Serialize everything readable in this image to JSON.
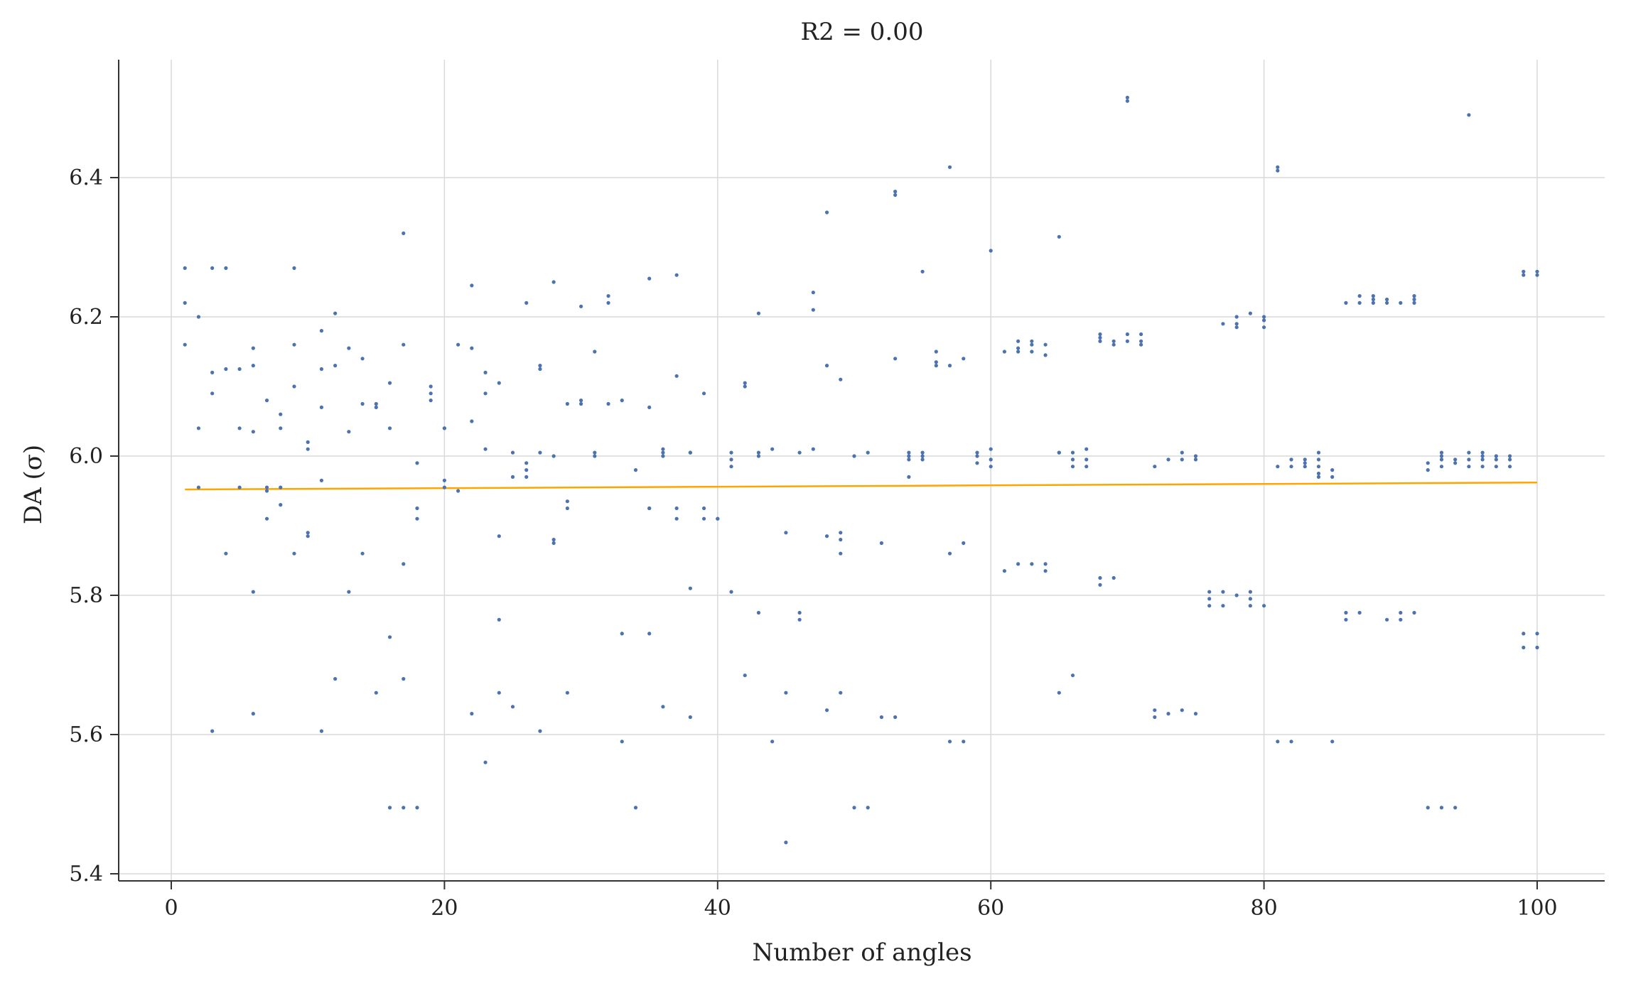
{
  "chart_data": {
    "type": "scatter",
    "title": "R2 = 0.00",
    "xlabel": "Number of angles",
    "ylabel": "DA (σ)",
    "xlim": [
      -4,
      105
    ],
    "ylim": [
      5.39,
      6.57
    ],
    "xticks": [
      0,
      20,
      40,
      60,
      80,
      100
    ],
    "yticks": [
      5.4,
      5.6,
      5.8,
      6.0,
      6.2,
      6.4
    ],
    "xtick_labels": [
      "0",
      "20",
      "40",
      "60",
      "80",
      "100"
    ],
    "ytick_labels": [
      "5.4",
      "5.6",
      "5.8",
      "6.0",
      "6.2",
      "6.4"
    ],
    "grid": true,
    "colors": {
      "points": "#4c72b0",
      "fit": "#ffa500",
      "grid": "#d9d9d9",
      "axis": "#333333"
    },
    "fit_line": {
      "x": [
        1,
        100
      ],
      "y": [
        5.952,
        5.962
      ]
    },
    "points": [
      [
        1,
        6.27
      ],
      [
        1,
        6.22
      ],
      [
        1,
        6.16
      ],
      [
        2,
        6.2
      ],
      [
        2,
        6.04
      ],
      [
        2,
        5.955
      ],
      [
        3,
        6.27
      ],
      [
        3,
        6.12
      ],
      [
        3,
        6.09
      ],
      [
        3,
        5.605
      ],
      [
        4,
        6.27
      ],
      [
        4,
        6.125
      ],
      [
        4,
        5.86
      ],
      [
        5,
        6.125
      ],
      [
        5,
        6.04
      ],
      [
        5,
        5.955
      ],
      [
        6,
        6.155
      ],
      [
        6,
        6.13
      ],
      [
        6,
        6.035
      ],
      [
        6,
        5.805
      ],
      [
        6,
        5.63
      ],
      [
        7,
        6.08
      ],
      [
        7,
        5.955
      ],
      [
        7,
        5.95
      ],
      [
        7,
        5.91
      ],
      [
        8,
        6.06
      ],
      [
        8,
        6.04
      ],
      [
        8,
        5.955
      ],
      [
        8,
        5.93
      ],
      [
        9,
        6.27
      ],
      [
        9,
        6.16
      ],
      [
        9,
        6.1
      ],
      [
        9,
        5.86
      ],
      [
        10,
        6.02
      ],
      [
        10,
        6.01
      ],
      [
        10,
        5.89
      ],
      [
        10,
        5.885
      ],
      [
        11,
        6.18
      ],
      [
        11,
        6.125
      ],
      [
        11,
        6.07
      ],
      [
        11,
        5.965
      ],
      [
        11,
        5.605
      ],
      [
        12,
        6.205
      ],
      [
        12,
        6.13
      ],
      [
        12,
        5.68
      ],
      [
        13,
        6.155
      ],
      [
        13,
        6.035
      ],
      [
        13,
        5.805
      ],
      [
        14,
        6.14
      ],
      [
        14,
        6.075
      ],
      [
        14,
        5.86
      ],
      [
        15,
        6.075
      ],
      [
        15,
        6.07
      ],
      [
        15,
        5.66
      ],
      [
        16,
        6.105
      ],
      [
        16,
        6.04
      ],
      [
        16,
        5.74
      ],
      [
        16,
        5.495
      ],
      [
        17,
        6.32
      ],
      [
        17,
        6.16
      ],
      [
        17,
        5.845
      ],
      [
        17,
        5.68
      ],
      [
        17,
        5.495
      ],
      [
        18,
        5.99
      ],
      [
        18,
        5.925
      ],
      [
        18,
        5.91
      ],
      [
        18,
        5.495
      ],
      [
        19,
        6.1
      ],
      [
        19,
        6.09
      ],
      [
        19,
        6.08
      ],
      [
        20,
        6.04
      ],
      [
        20,
        6.04
      ],
      [
        20,
        5.965
      ],
      [
        20,
        5.955
      ],
      [
        21,
        6.16
      ],
      [
        21,
        5.95
      ],
      [
        22,
        6.245
      ],
      [
        22,
        6.155
      ],
      [
        22,
        6.05
      ],
      [
        22,
        5.63
      ],
      [
        23,
        6.12
      ],
      [
        23,
        6.09
      ],
      [
        23,
        6.01
      ],
      [
        23,
        5.56
      ],
      [
        24,
        6.105
      ],
      [
        24,
        5.885
      ],
      [
        24,
        5.765
      ],
      [
        24,
        5.66
      ],
      [
        25,
        6.005
      ],
      [
        25,
        5.97
      ],
      [
        25,
        5.64
      ],
      [
        26,
        6.22
      ],
      [
        26,
        5.99
      ],
      [
        26,
        5.98
      ],
      [
        26,
        5.97
      ],
      [
        27,
        6.13
      ],
      [
        27,
        6.125
      ],
      [
        27,
        6.005
      ],
      [
        27,
        5.605
      ],
      [
        28,
        6.25
      ],
      [
        28,
        6.0
      ],
      [
        28,
        5.88
      ],
      [
        28,
        5.875
      ],
      [
        29,
        6.075
      ],
      [
        29,
        5.935
      ],
      [
        29,
        5.925
      ],
      [
        29,
        5.66
      ],
      [
        30,
        6.215
      ],
      [
        30,
        6.08
      ],
      [
        30,
        6.075
      ],
      [
        31,
        6.15
      ],
      [
        31,
        6.005
      ],
      [
        31,
        6.0
      ],
      [
        32,
        6.23
      ],
      [
        32,
        6.22
      ],
      [
        32,
        6.075
      ],
      [
        33,
        6.08
      ],
      [
        33,
        5.745
      ],
      [
        33,
        5.59
      ],
      [
        34,
        5.98
      ],
      [
        34,
        5.495
      ],
      [
        35,
        6.255
      ],
      [
        35,
        6.07
      ],
      [
        35,
        5.925
      ],
      [
        35,
        5.925
      ],
      [
        35,
        5.745
      ],
      [
        36,
        6.01
      ],
      [
        36,
        6.005
      ],
      [
        36,
        6.0
      ],
      [
        36,
        5.64
      ],
      [
        37,
        6.26
      ],
      [
        37,
        6.115
      ],
      [
        37,
        5.925
      ],
      [
        37,
        5.91
      ],
      [
        38,
        6.005
      ],
      [
        38,
        6.005
      ],
      [
        38,
        5.81
      ],
      [
        38,
        5.625
      ],
      [
        39,
        6.09
      ],
      [
        39,
        5.925
      ],
      [
        39,
        5.91
      ],
      [
        40,
        5.91
      ],
      [
        40,
        5.91
      ],
      [
        41,
        6.005
      ],
      [
        41,
        5.995
      ],
      [
        41,
        5.985
      ],
      [
        41,
        5.805
      ],
      [
        42,
        6.105
      ],
      [
        42,
        6.1
      ],
      [
        42,
        5.685
      ],
      [
        43,
        6.205
      ],
      [
        43,
        6.005
      ],
      [
        43,
        6.0
      ],
      [
        43,
        5.775
      ],
      [
        44,
        6.01
      ],
      [
        44,
        5.59
      ],
      [
        45,
        5.89
      ],
      [
        45,
        5.66
      ],
      [
        45,
        5.445
      ],
      [
        46,
        6.005
      ],
      [
        46,
        5.775
      ],
      [
        46,
        5.765
      ],
      [
        47,
        6.235
      ],
      [
        47,
        6.21
      ],
      [
        47,
        6.01
      ],
      [
        48,
        6.35
      ],
      [
        48,
        6.13
      ],
      [
        48,
        5.885
      ],
      [
        48,
        5.635
      ],
      [
        49,
        6.11
      ],
      [
        49,
        5.89
      ],
      [
        49,
        5.88
      ],
      [
        49,
        5.86
      ],
      [
        49,
        5.66
      ],
      [
        50,
        6.0
      ],
      [
        50,
        5.495
      ],
      [
        51,
        6.005
      ],
      [
        51,
        5.495
      ],
      [
        52,
        5.875
      ],
      [
        52,
        5.625
      ],
      [
        53,
        6.38
      ],
      [
        53,
        6.375
      ],
      [
        53,
        6.14
      ],
      [
        53,
        5.625
      ],
      [
        54,
        6.005
      ],
      [
        54,
        6.0
      ],
      [
        54,
        5.995
      ],
      [
        54,
        5.97
      ],
      [
        55,
        6.265
      ],
      [
        55,
        6.005
      ],
      [
        55,
        6.0
      ],
      [
        55,
        5.995
      ],
      [
        56,
        6.15
      ],
      [
        56,
        6.135
      ],
      [
        56,
        6.13
      ],
      [
        57,
        6.415
      ],
      [
        57,
        6.13
      ],
      [
        57,
        5.86
      ],
      [
        57,
        5.59
      ],
      [
        58,
        6.14
      ],
      [
        58,
        5.875
      ],
      [
        58,
        5.59
      ],
      [
        59,
        6.005
      ],
      [
        59,
        6.0
      ],
      [
        59,
        5.99
      ],
      [
        60,
        6.295
      ],
      [
        60,
        6.01
      ],
      [
        60,
        5.995
      ],
      [
        60,
        5.985
      ],
      [
        61,
        6.15
      ],
      [
        61,
        5.835
      ],
      [
        62,
        6.165
      ],
      [
        62,
        6.155
      ],
      [
        62,
        6.15
      ],
      [
        62,
        5.845
      ],
      [
        63,
        6.165
      ],
      [
        63,
        6.16
      ],
      [
        63,
        6.15
      ],
      [
        63,
        5.845
      ],
      [
        64,
        6.16
      ],
      [
        64,
        6.145
      ],
      [
        64,
        5.845
      ],
      [
        64,
        5.835
      ],
      [
        65,
        6.315
      ],
      [
        65,
        6.005
      ],
      [
        65,
        6.005
      ],
      [
        65,
        5.66
      ],
      [
        66,
        6.005
      ],
      [
        66,
        5.995
      ],
      [
        66,
        5.985
      ],
      [
        66,
        5.685
      ],
      [
        67,
        6.01
      ],
      [
        67,
        5.995
      ],
      [
        67,
        5.985
      ],
      [
        68,
        6.175
      ],
      [
        68,
        6.17
      ],
      [
        68,
        6.165
      ],
      [
        68,
        5.825
      ],
      [
        68,
        5.815
      ],
      [
        69,
        6.165
      ],
      [
        69,
        6.16
      ],
      [
        69,
        5.825
      ],
      [
        70,
        6.515
      ],
      [
        70,
        6.51
      ],
      [
        70,
        6.175
      ],
      [
        70,
        6.165
      ],
      [
        71,
        6.175
      ],
      [
        71,
        6.165
      ],
      [
        71,
        6.16
      ],
      [
        72,
        5.985
      ],
      [
        72,
        5.635
      ],
      [
        72,
        5.625
      ],
      [
        73,
        5.995
      ],
      [
        73,
        5.63
      ],
      [
        74,
        6.005
      ],
      [
        74,
        5.995
      ],
      [
        74,
        5.635
      ],
      [
        75,
        6.0
      ],
      [
        75,
        5.995
      ],
      [
        75,
        5.63
      ],
      [
        76,
        5.805
      ],
      [
        76,
        5.795
      ],
      [
        76,
        5.785
      ],
      [
        77,
        6.19
      ],
      [
        77,
        5.805
      ],
      [
        77,
        5.785
      ],
      [
        78,
        6.2
      ],
      [
        78,
        6.19
      ],
      [
        78,
        6.185
      ],
      [
        78,
        5.8
      ],
      [
        79,
        6.205
      ],
      [
        79,
        5.805
      ],
      [
        79,
        5.795
      ],
      [
        79,
        5.785
      ],
      [
        80,
        6.2
      ],
      [
        80,
        6.195
      ],
      [
        80,
        6.185
      ],
      [
        80,
        5.785
      ],
      [
        81,
        6.415
      ],
      [
        81,
        6.41
      ],
      [
        81,
        5.985
      ],
      [
        81,
        5.59
      ],
      [
        82,
        5.995
      ],
      [
        82,
        5.985
      ],
      [
        82,
        5.59
      ],
      [
        83,
        5.995
      ],
      [
        83,
        5.99
      ],
      [
        83,
        5.985
      ],
      [
        84,
        6.005
      ],
      [
        84,
        5.995
      ],
      [
        84,
        5.985
      ],
      [
        84,
        5.975
      ],
      [
        84,
        5.97
      ],
      [
        85,
        5.98
      ],
      [
        85,
        5.97
      ],
      [
        85,
        5.59
      ],
      [
        86,
        6.22
      ],
      [
        86,
        5.775
      ],
      [
        86,
        5.765
      ],
      [
        87,
        6.23
      ],
      [
        87,
        6.22
      ],
      [
        87,
        5.775
      ],
      [
        88,
        6.23
      ],
      [
        88,
        6.225
      ],
      [
        88,
        6.22
      ],
      [
        89,
        6.225
      ],
      [
        89,
        6.22
      ],
      [
        89,
        5.765
      ],
      [
        90,
        6.22
      ],
      [
        90,
        5.775
      ],
      [
        90,
        5.765
      ],
      [
        91,
        6.23
      ],
      [
        91,
        6.225
      ],
      [
        91,
        6.22
      ],
      [
        91,
        5.775
      ],
      [
        92,
        5.99
      ],
      [
        92,
        5.98
      ],
      [
        92,
        5.495
      ],
      [
        93,
        6.005
      ],
      [
        93,
        6.0
      ],
      [
        93,
        5.995
      ],
      [
        93,
        5.985
      ],
      [
        93,
        5.495
      ],
      [
        94,
        5.995
      ],
      [
        94,
        5.99
      ],
      [
        94,
        5.495
      ],
      [
        95,
        6.49
      ],
      [
        95,
        6.005
      ],
      [
        95,
        5.995
      ],
      [
        95,
        5.985
      ],
      [
        96,
        6.005
      ],
      [
        96,
        6.0
      ],
      [
        96,
        5.995
      ],
      [
        96,
        5.985
      ],
      [
        97,
        6.0
      ],
      [
        97,
        5.995
      ],
      [
        97,
        5.985
      ],
      [
        98,
        6.0
      ],
      [
        98,
        5.995
      ],
      [
        98,
        5.985
      ],
      [
        99,
        6.265
      ],
      [
        99,
        6.26
      ],
      [
        99,
        5.745
      ],
      [
        99,
        5.725
      ],
      [
        100,
        6.265
      ],
      [
        100,
        6.26
      ],
      [
        100,
        5.745
      ],
      [
        100,
        5.725
      ]
    ]
  }
}
